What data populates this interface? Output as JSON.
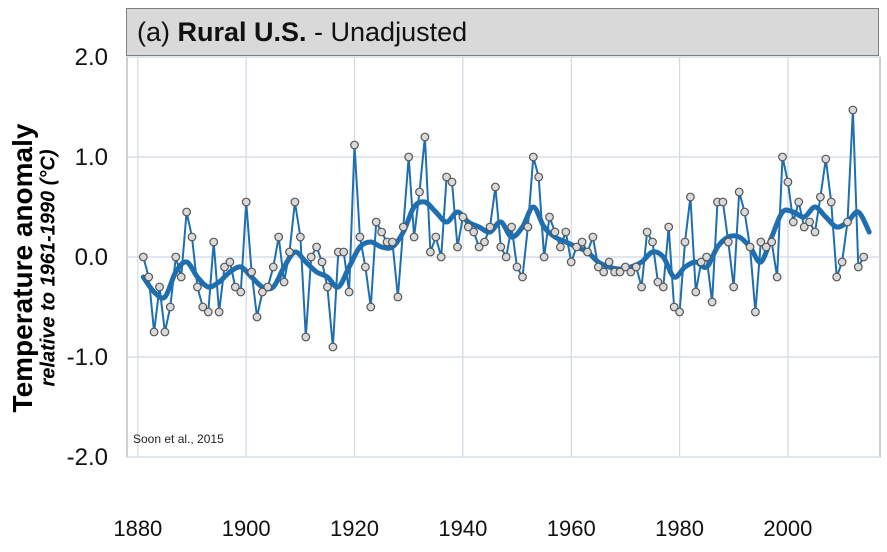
{
  "chart_data": {
    "type": "line",
    "title": {
      "prefix": "(a) ",
      "bold": "Rural U.S.",
      "suffix": " - Unadjusted"
    },
    "ylabel": "Temperature anomaly",
    "ylabel_sub": "relative to 1961-1990 (°C)",
    "xlabel": "",
    "xlim": [
      1878,
      2017
    ],
    "ylim": [
      -2.0,
      2.0
    ],
    "xticks": [
      1880,
      1900,
      1920,
      1940,
      1960,
      1980,
      2000
    ],
    "yticks": [
      {
        "value": 2.0,
        "label": "2.0"
      },
      {
        "value": 1.0,
        "label": "1.0"
      },
      {
        "value": 0.0,
        "label": "0.0"
      },
      {
        "value": -1.0,
        "label": "-1.0"
      },
      {
        "value": -2.0,
        "label": "-2.0"
      }
    ],
    "grid": true,
    "annotation": "Soon et al., 2015",
    "colors": {
      "line": "#1f6fb0",
      "marker_fill": "#d9d9d9",
      "marker_edge": "#555555",
      "grid": "#cfd8e6",
      "title_bg": "#d9d9d9"
    },
    "series": [
      {
        "kind": "annual",
        "x": [
          1881,
          1882,
          1883,
          1884,
          1885,
          1886,
          1887,
          1888,
          1889,
          1890,
          1891,
          1892,
          1893,
          1894,
          1895,
          1896,
          1897,
          1898,
          1899,
          1900,
          1901,
          1902,
          1903,
          1904,
          1905,
          1906,
          1907,
          1908,
          1909,
          1910,
          1911,
          1912,
          1913,
          1914,
          1915,
          1916,
          1917,
          1918,
          1919,
          1920,
          1921,
          1922,
          1923,
          1924,
          1925,
          1926,
          1927,
          1928,
          1929,
          1930,
          1931,
          1932,
          1933,
          1934,
          1935,
          1936,
          1937,
          1938,
          1939,
          1940,
          1941,
          1942,
          1943,
          1944,
          1945,
          1946,
          1947,
          1948,
          1949,
          1950,
          1951,
          1952,
          1953,
          1954,
          1955,
          1956,
          1957,
          1958,
          1959,
          1960,
          1961,
          1962,
          1963,
          1964,
          1965,
          1966,
          1967,
          1968,
          1969,
          1970,
          1971,
          1972,
          1973,
          1974,
          1975,
          1976,
          1977,
          1978,
          1979,
          1980,
          1981,
          1982,
          1983,
          1984,
          1985,
          1986,
          1987,
          1988,
          1989,
          1990,
          1991,
          1992,
          1993,
          1994,
          1995,
          1996,
          1997,
          1998,
          1999,
          2000,
          2001,
          2002,
          2003,
          2004,
          2005,
          2006,
          2007,
          2008,
          2009,
          2010,
          2011,
          2012,
          2013,
          2014
        ],
        "y": [
          0.0,
          -0.2,
          -0.75,
          -0.3,
          -0.75,
          -0.5,
          0.0,
          -0.2,
          0.45,
          0.2,
          -0.3,
          -0.5,
          -0.55,
          0.15,
          -0.55,
          -0.1,
          -0.05,
          -0.3,
          -0.35,
          0.55,
          -0.15,
          -0.6,
          -0.35,
          -0.3,
          -0.1,
          0.2,
          -0.25,
          0.05,
          0.55,
          0.2,
          -0.8,
          0.0,
          0.1,
          -0.05,
          -0.3,
          -0.9,
          0.05,
          0.05,
          -0.35,
          1.12,
          0.2,
          -0.1,
          -0.5,
          0.35,
          0.25,
          0.15,
          0.15,
          -0.4,
          0.3,
          1.0,
          0.2,
          0.65,
          1.2,
          0.05,
          0.2,
          0.0,
          0.8,
          0.75,
          0.1,
          0.4,
          0.3,
          0.25,
          0.1,
          0.15,
          0.3,
          0.7,
          0.1,
          0.0,
          0.3,
          -0.1,
          -0.2,
          0.3,
          1.0,
          0.8,
          0.0,
          0.4,
          0.25,
          0.1,
          0.25,
          -0.05,
          0.1,
          0.15,
          0.05,
          0.2,
          -0.1,
          -0.15,
          -0.05,
          -0.15,
          -0.15,
          -0.1,
          -0.15,
          -0.1,
          -0.3,
          0.25,
          0.15,
          -0.25,
          -0.3,
          0.3,
          -0.5,
          -0.55,
          0.15,
          0.6,
          -0.35,
          -0.05,
          0.0,
          -0.45,
          0.55,
          0.55,
          0.15,
          -0.3,
          0.65,
          0.45,
          0.1,
          -0.55,
          0.15,
          0.1,
          0.15,
          -0.2,
          1.0,
          0.75,
          0.35,
          0.55,
          0.3,
          0.35,
          0.25,
          0.6,
          0.98,
          0.55,
          -0.2,
          -0.05,
          0.35,
          1.47,
          -0.1,
          0.0
        ]
      },
      {
        "kind": "smoothed",
        "x": [
          1881,
          1883,
          1885,
          1887,
          1889,
          1891,
          1893,
          1895,
          1897,
          1899,
          1901,
          1903,
          1905,
          1907,
          1909,
          1911,
          1913,
          1915,
          1917,
          1919,
          1921,
          1923,
          1925,
          1927,
          1929,
          1931,
          1933,
          1935,
          1937,
          1939,
          1941,
          1943,
          1945,
          1947,
          1949,
          1951,
          1953,
          1955,
          1957,
          1959,
          1961,
          1963,
          1965,
          1967,
          1969,
          1971,
          1973,
          1975,
          1977,
          1979,
          1981,
          1983,
          1985,
          1987,
          1989,
          1991,
          1993,
          1995,
          1997,
          1999,
          2001,
          2003,
          2005,
          2007,
          2009,
          2011,
          2013,
          2015
        ],
        "y": [
          -0.2,
          -0.35,
          -0.4,
          -0.15,
          -0.05,
          -0.2,
          -0.3,
          -0.25,
          -0.15,
          -0.1,
          -0.2,
          -0.3,
          -0.3,
          -0.1,
          0.05,
          -0.05,
          -0.15,
          -0.2,
          -0.3,
          -0.1,
          0.1,
          0.15,
          0.1,
          0.1,
          0.25,
          0.5,
          0.55,
          0.45,
          0.35,
          0.45,
          0.35,
          0.3,
          0.25,
          0.35,
          0.2,
          0.3,
          0.5,
          0.3,
          0.2,
          0.15,
          0.1,
          0.05,
          -0.05,
          -0.1,
          -0.12,
          -0.1,
          -0.05,
          0.05,
          0.0,
          -0.2,
          -0.1,
          -0.05,
          -0.1,
          0.1,
          0.2,
          0.2,
          0.1,
          -0.05,
          0.2,
          0.45,
          0.45,
          0.4,
          0.5,
          0.4,
          0.3,
          0.35,
          0.45,
          0.25
        ]
      }
    ]
  }
}
